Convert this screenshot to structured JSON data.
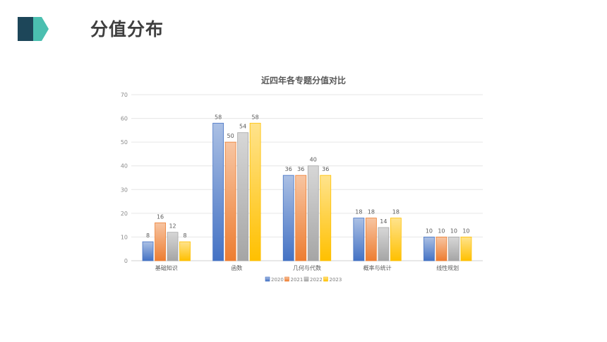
{
  "slide": {
    "title": "分值分布",
    "accent_colors": [
      "#1d4659",
      "#4bbfb0"
    ]
  },
  "chart_data": {
    "type": "bar",
    "title": "近四年各专题分值对比",
    "categories": [
      "基础知识",
      "函数",
      "几何与代数",
      "概率与统计",
      "线性规划"
    ],
    "series": [
      {
        "name": "2020",
        "values": [
          8,
          58,
          36,
          18,
          10
        ],
        "color": "#4472c4"
      },
      {
        "name": "2021",
        "values": [
          16,
          50,
          36,
          18,
          10
        ],
        "color": "#ed7d31"
      },
      {
        "name": "2022",
        "values": [
          12,
          54,
          40,
          14,
          10
        ],
        "color": "#a5a5a5"
      },
      {
        "name": "2023",
        "values": [
          8,
          58,
          36,
          18,
          10
        ],
        "color": "#ffc000"
      }
    ],
    "ylim": [
      0,
      70
    ],
    "yticks": [
      0,
      10,
      20,
      30,
      40,
      50,
      60,
      70
    ],
    "data_labels": true,
    "grid": true,
    "legend_position": "bottom"
  }
}
